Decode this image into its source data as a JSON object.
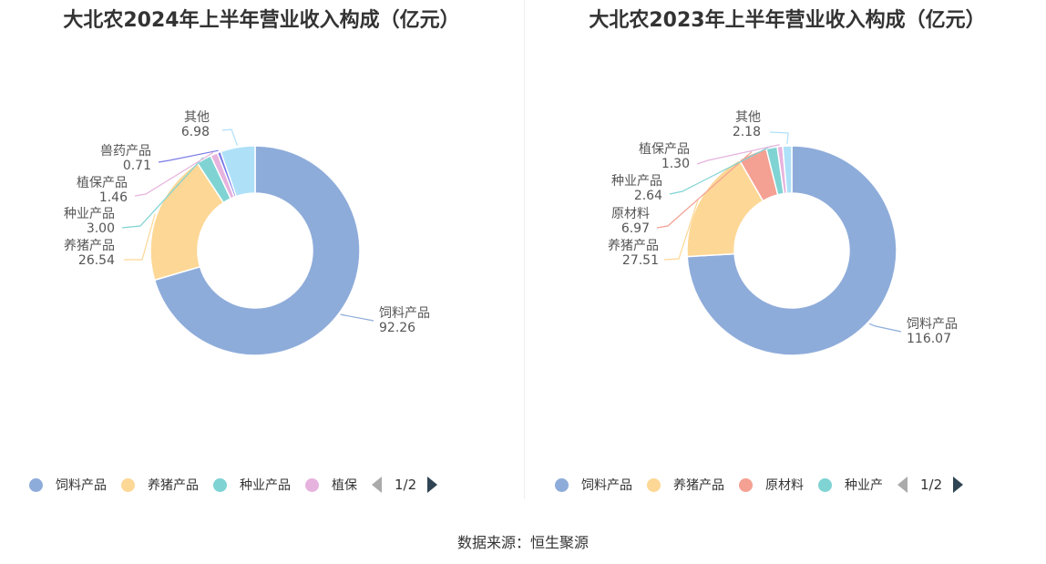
{
  "palette": [
    "#8eacda",
    "#fdd795",
    "#7fd3d3",
    "#e6b3de",
    "#7b7be8",
    "#aee1f8",
    "#f4a092"
  ],
  "chart_data": [
    {
      "type": "pie",
      "title": "大北农2024年上半年营业收入构成（亿元）",
      "slices": [
        {
          "name": "饲料产品",
          "value": 92.26,
          "value_label": "92.26",
          "color": "#8eacda"
        },
        {
          "name": "养猪产品",
          "value": 26.54,
          "value_label": "26.54",
          "color": "#fdd795"
        },
        {
          "name": "种业产品",
          "value": 3.0,
          "value_label": "3.00",
          "color": "#7fd3d3"
        },
        {
          "name": "植保产品",
          "value": 1.46,
          "value_label": "1.46",
          "color": "#e6b3de"
        },
        {
          "name": "兽药产品",
          "value": 0.71,
          "value_label": "0.71",
          "color": "#7b7be8"
        },
        {
          "name": "其他",
          "value": 6.98,
          "value_label": "6.98",
          "color": "#aee1f8"
        }
      ],
      "legend": {
        "items": [
          {
            "label": "饲料产品",
            "color": "#8eacda"
          },
          {
            "label": "养猪产品",
            "color": "#fdd795"
          },
          {
            "label": "种业产品",
            "color": "#7fd3d3"
          },
          {
            "label": "植保",
            "color": "#e6b3de"
          }
        ],
        "page": "1/2"
      }
    },
    {
      "type": "pie",
      "title": "大北农2023年上半年营业收入构成（亿元）",
      "slices": [
        {
          "name": "饲料产品",
          "value": 116.07,
          "value_label": "116.07",
          "color": "#8eacda"
        },
        {
          "name": "养猪产品",
          "value": 27.51,
          "value_label": "27.51",
          "color": "#fdd795"
        },
        {
          "name": "原材料",
          "value": 6.97,
          "value_label": "6.97",
          "color": "#f4a092"
        },
        {
          "name": "种业产品",
          "value": 2.64,
          "value_label": "2.64",
          "color": "#7fd3d3"
        },
        {
          "name": "植保产品",
          "value": 1.3,
          "value_label": "1.30",
          "color": "#e6b3de"
        },
        {
          "name": "其他",
          "value": 2.18,
          "value_label": "2.18",
          "color": "#aee1f8"
        }
      ],
      "legend": {
        "items": [
          {
            "label": "饲料产品",
            "color": "#8eacda"
          },
          {
            "label": "养猪产品",
            "color": "#fdd795"
          },
          {
            "label": "原材料",
            "color": "#f4a092"
          },
          {
            "label": "种业产",
            "color": "#7fd3d3"
          }
        ],
        "page": "1/2"
      }
    }
  ],
  "source": "数据来源：恒生聚源"
}
